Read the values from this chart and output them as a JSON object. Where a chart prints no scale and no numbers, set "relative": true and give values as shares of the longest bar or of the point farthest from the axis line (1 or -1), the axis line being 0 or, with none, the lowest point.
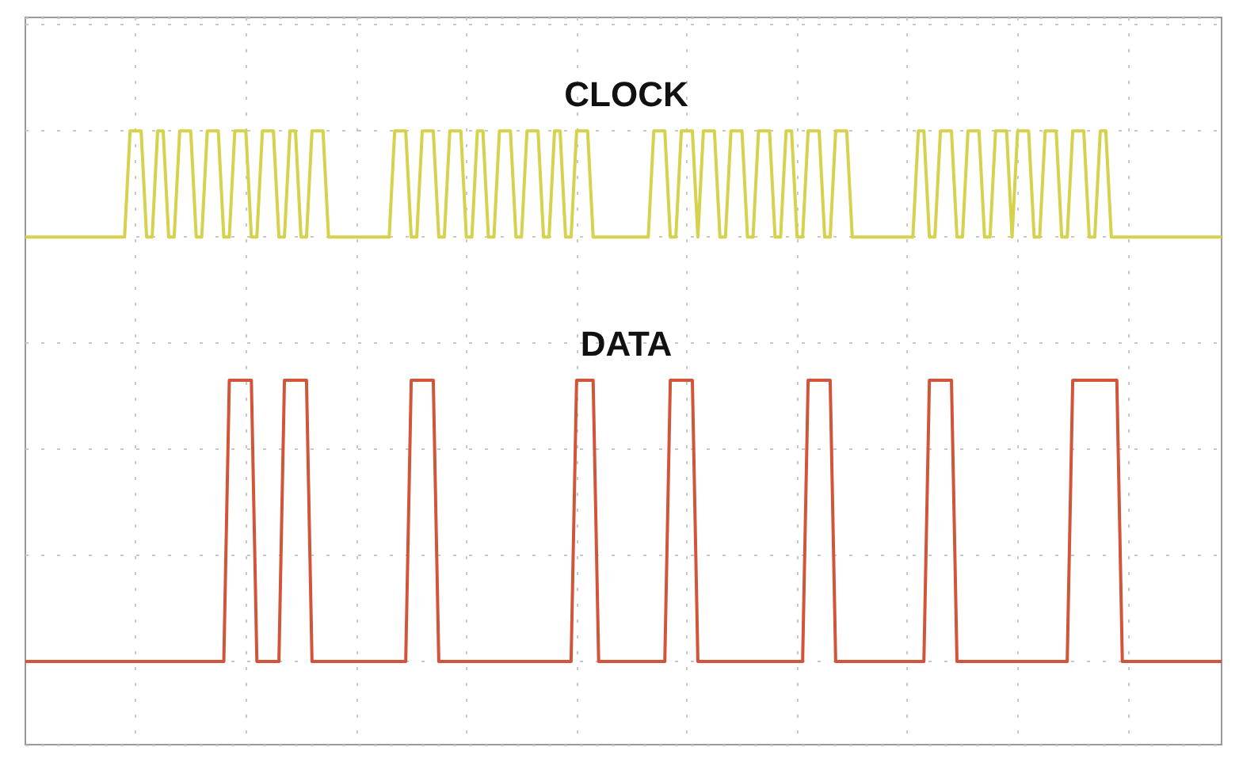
{
  "chart_data": {
    "type": "line",
    "relative": true,
    "grid": true,
    "legend": false,
    "line_style": "solid",
    "marker": "none",
    "categories": [
      null,
      null,
      null,
      null,
      null,
      null,
      null,
      null,
      null,
      null,
      null,
      null,
      null,
      null,
      null,
      null,
      null,
      null,
      null,
      null,
      null,
      null,
      null,
      null,
      null,
      null,
      null,
      null,
      null,
      null,
      null,
      null,
      null,
      null,
      null,
      null,
      null,
      null,
      null,
      null,
      null,
      null,
      null,
      null,
      null,
      null,
      null,
      null,
      null,
      null,
      null,
      null,
      null,
      null,
      null,
      null,
      null,
      null,
      null,
      null,
      null,
      null,
      null,
      null,
      null,
      null,
      null,
      null,
      null,
      null,
      null,
      null,
      null,
      null,
      null,
      null,
      null,
      null,
      null,
      null,
      null,
      null,
      null,
      null,
      null,
      null,
      null,
      null,
      null,
      null,
      null,
      null,
      null,
      null,
      null,
      null,
      null,
      null,
      null,
      null,
      null,
      null,
      null,
      null,
      null,
      null,
      null,
      null,
      null,
      null,
      null,
      null,
      null,
      null,
      null,
      null,
      null,
      null,
      null,
      null,
      null,
      null,
      null,
      null,
      null,
      null,
      null,
      null,
      null,
      null,
      null,
      null,
      null,
      null,
      null,
      null,
      null,
      null,
      null,
      null,
      null,
      null,
      null,
      null,
      null,
      null,
      null,
      null,
      null,
      null,
      null,
      null,
      null,
      null,
      null,
      null,
      null,
      null,
      null,
      null,
      null,
      null,
      null,
      null,
      null,
      null,
      null,
      null,
      null,
      null,
      null,
      null,
      null,
      null,
      null,
      null,
      null,
      null,
      null,
      null,
      null,
      null,
      null,
      null,
      null,
      null,
      null,
      null,
      null,
      null,
      null,
      null,
      null,
      null,
      null,
      null,
      null,
      null,
      null,
      null,
      null,
      null,
      null,
      null,
      null,
      null,
      null,
      null,
      null,
      null,
      null,
      null,
      null,
      null,
      null,
      null,
      null,
      null
    ],
    "series": [
      {
        "name": "CLOCK",
        "color": "#d6d24e",
        "values": [
          0.8,
          0.8,
          0.8,
          0.8,
          0.8,
          0.8,
          0.8,
          0.8,
          0.8,
          0.8,
          0.8,
          0.8,
          0.8,
          0.8,
          0.8,
          0.8,
          0.8,
          0.8,
          0.8,
          1,
          1,
          1,
          0.8,
          0.8,
          1,
          1,
          0.8,
          0.8,
          1,
          1,
          1,
          0.8,
          0.8,
          1,
          1,
          1,
          0.8,
          0.8,
          1,
          1,
          1,
          0.8,
          0.8,
          1,
          1,
          1,
          0.8,
          0.8,
          1,
          1,
          0.8,
          0.8,
          1,
          1,
          1,
          0.8,
          0.8,
          0.8,
          0.8,
          0.8,
          0.8,
          0.8,
          0.8,
          0.8,
          0.8,
          0.8,
          0.8,
          1,
          1,
          1,
          0.8,
          0.8,
          1,
          1,
          1,
          0.8,
          0.8,
          1,
          1,
          1,
          0.8,
          0.8,
          1,
          1,
          0.8,
          0.8,
          1,
          1,
          1,
          0.8,
          0.8,
          1,
          1,
          1,
          0.8,
          0.8,
          1,
          1,
          0.8,
          0.8,
          1,
          1,
          1,
          0.8,
          0.8,
          0.8,
          0.8,
          0.8,
          0.8,
          0.8,
          0.8,
          0.8,
          0.8,
          0.8,
          1,
          1,
          1,
          0.8,
          0.8,
          1,
          1,
          1,
          0.8,
          1,
          1,
          1,
          0.8,
          0.8,
          1,
          1,
          1,
          0.8,
          0.8,
          1,
          1,
          1,
          0.8,
          0.8,
          1,
          1,
          0.8,
          0.8,
          1,
          1,
          1,
          0.8,
          0.8,
          1,
          1,
          1,
          0.8,
          0.8,
          0.8,
          0.8,
          0.8,
          0.8,
          0.8,
          0.8,
          0.8,
          0.8,
          0.8,
          0.8,
          1,
          1,
          0.8,
          0.8,
          1,
          1,
          1,
          0.8,
          0.8,
          1,
          1,
          1,
          0.8,
          0.8,
          1,
          1,
          1,
          0.8,
          1,
          1,
          1,
          0.8,
          0.8,
          1,
          1,
          1,
          0.8,
          0.8,
          1,
          1,
          1,
          0.8,
          0.8,
          1,
          1,
          0.8,
          0.8,
          0.8,
          0.8,
          0.8,
          0.8,
          0.8,
          0.8,
          0.8,
          0.8,
          0.8,
          0.8,
          0.8,
          0.8,
          0.8,
          0.8,
          0.8,
          0.8,
          0.8,
          0.8,
          0.8
        ]
      },
      {
        "name": "DATA",
        "color": "#d0553a",
        "values": [
          0,
          0,
          0,
          0,
          0,
          0,
          0,
          0,
          0,
          0,
          0,
          0,
          0,
          0,
          0,
          0,
          0,
          0,
          0,
          0,
          0,
          0,
          0,
          0,
          0,
          0,
          0,
          0,
          0,
          0,
          0,
          0,
          0,
          0,
          0,
          0,
          0,
          0.53,
          0.53,
          0.53,
          0.53,
          0.53,
          0,
          0,
          0,
          0,
          0,
          0.53,
          0.53,
          0.53,
          0.53,
          0.53,
          0,
          0,
          0,
          0,
          0,
          0,
          0,
          0,
          0,
          0,
          0,
          0,
          0,
          0,
          0,
          0,
          0,
          0,
          0.53,
          0.53,
          0.53,
          0.53,
          0.53,
          0,
          0,
          0,
          0,
          0,
          0,
          0,
          0,
          0,
          0,
          0,
          0,
          0,
          0,
          0,
          0,
          0,
          0,
          0,
          0,
          0,
          0,
          0,
          0,
          0,
          0.53,
          0.53,
          0.53,
          0.53,
          0,
          0,
          0,
          0,
          0,
          0,
          0,
          0,
          0,
          0,
          0,
          0,
          0,
          0.53,
          0.53,
          0.53,
          0.53,
          0.53,
          0,
          0,
          0,
          0,
          0,
          0,
          0,
          0,
          0,
          0,
          0,
          0,
          0,
          0,
          0,
          0,
          0,
          0,
          0,
          0,
          0.53,
          0.53,
          0.53,
          0.53,
          0.53,
          0,
          0,
          0,
          0,
          0,
          0,
          0,
          0,
          0,
          0,
          0,
          0,
          0,
          0,
          0,
          0,
          0,
          0.53,
          0.53,
          0.53,
          0.53,
          0.53,
          0,
          0,
          0,
          0,
          0,
          0,
          0,
          0,
          0,
          0,
          0,
          0,
          0,
          0,
          0,
          0,
          0,
          0,
          0,
          0,
          0,
          0.53,
          0.53,
          0.53,
          0.53,
          0.53,
          0.53,
          0.53,
          0.53,
          0.53,
          0,
          0,
          0,
          0,
          0,
          0,
          0,
          0,
          0,
          0,
          0,
          0,
          0,
          0,
          0,
          0,
          0,
          0,
          0
        ]
      }
    ]
  }
}
